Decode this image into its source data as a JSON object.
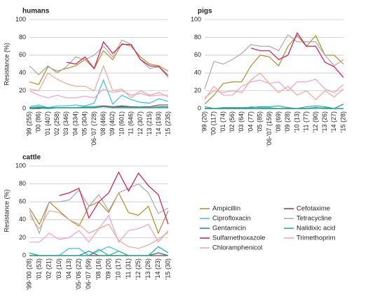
{
  "legend": [
    {
      "name": "Ampicillin",
      "color": "#b08d2a"
    },
    {
      "name": "Cefotaxime",
      "color": "#9b2c5a"
    },
    {
      "name": "Ciprofloxacin",
      "color": "#3cc0e0"
    },
    {
      "name": "Tetracycline",
      "color": "#a9a9a9"
    },
    {
      "name": "Gentamicin",
      "color": "#16966a"
    },
    {
      "name": "Nalidixic acid",
      "color": "#22a8a0"
    },
    {
      "name": "Sulfamethoxazole",
      "color": "#d4145a"
    },
    {
      "name": "Trimethoprim",
      "color": "#f0a0c8"
    },
    {
      "name": "Chloramphenicol",
      "color": "#e8a896"
    }
  ],
  "chart_data": [
    {
      "type": "line",
      "title": "humans",
      "ylabel": "Resistance (%)",
      "ylim": [
        0,
        100
      ],
      "yticks": [
        0,
        20,
        40,
        60,
        80,
        100
      ],
      "grid": true,
      "categories": [
        "'99 (255)",
        "'00 (86)",
        "'01 (407)",
        "'02 (258)",
        "'03 (346)",
        "'04 (334)",
        "'05 (304)",
        "'06-'07 (728)",
        "'08 (466)",
        "'09 (402)",
        "'10 (601)",
        "'11 (646)",
        "'12 (307)",
        "'13 (215)",
        "'14 (193)",
        "'15 (235)"
      ],
      "series": [
        {
          "values": [
            30,
            27,
            47,
            42,
            45,
            48,
            55,
            45,
            65,
            55,
            73,
            70,
            58,
            50,
            48,
            42
          ]
        },
        {
          "values": [
            0,
            0,
            1,
            1,
            1,
            1,
            2,
            2,
            3,
            2,
            3,
            2,
            2,
            2,
            4,
            4
          ]
        },
        {
          "values": [
            2,
            4,
            1,
            3,
            3,
            4,
            3,
            6,
            32,
            5,
            15,
            10,
            7,
            6,
            11,
            8
          ]
        },
        {
          "values": [
            48,
            38,
            48,
            40,
            47,
            58,
            55,
            60,
            70,
            58,
            77,
            72,
            55,
            45,
            47,
            35
          ]
        },
        {
          "values": [
            0,
            1,
            0,
            1,
            1,
            1,
            1,
            1,
            2,
            1,
            2,
            1,
            1,
            1,
            2,
            2
          ]
        },
        {
          "values": [
            1,
            2,
            1,
            1,
            1,
            1,
            2,
            2,
            2,
            1,
            1,
            1,
            2,
            1,
            1,
            1
          ]
        },
        {
          "values": [
            null,
            null,
            null,
            null,
            52,
            50,
            58,
            45,
            75,
            62,
            72,
            72,
            55,
            48,
            47,
            37
          ]
        },
        {
          "values": [
            20,
            15,
            12,
            15,
            12,
            12,
            14,
            12,
            22,
            18,
            20,
            15,
            17,
            14,
            15,
            15
          ]
        },
        {
          "values": [
            22,
            20,
            40,
            33,
            28,
            25,
            25,
            20,
            48,
            20,
            22,
            12,
            20,
            15,
            18,
            13
          ]
        }
      ]
    },
    {
      "type": "line",
      "title": "pigs",
      "ylim": [
        0,
        100
      ],
      "yticks": [
        0,
        20,
        40,
        60,
        80,
        100
      ],
      "grid": true,
      "categories": [
        "'99 (20)",
        "'00 (117)",
        "'01 (74)",
        "'02 (56)",
        "'03 (64)",
        "'04 (77)",
        "'05 (85)",
        "'06-'07 (159)",
        "'08 (69)",
        "'09 (28)",
        "'10 (13)",
        "'11 (77)",
        "'12 (90)",
        "'13 (26)",
        "'14 (27)",
        "'15 (28)"
      ],
      "series": [
        {
          "values": [
            5,
            15,
            28,
            30,
            30,
            48,
            60,
            58,
            48,
            70,
            82,
            70,
            82,
            60,
            60,
            50
          ]
        },
        {
          "values": [
            0,
            0,
            0,
            0,
            0,
            0,
            0,
            0,
            0,
            0,
            0,
            0,
            1,
            0,
            0,
            0
          ]
        },
        {
          "values": [
            0,
            0,
            0,
            1,
            0,
            2,
            1,
            1,
            0,
            0,
            0,
            0,
            0,
            1,
            0,
            0
          ]
        },
        {
          "values": [
            22,
            53,
            50,
            55,
            62,
            72,
            70,
            70,
            65,
            83,
            75,
            75,
            75,
            60,
            48,
            55
          ]
        },
        {
          "values": [
            0,
            0,
            0,
            0,
            0,
            0,
            0,
            0,
            0,
            0,
            0,
            0,
            1,
            0,
            0,
            5
          ]
        },
        {
          "values": [
            2,
            0,
            1,
            1,
            1,
            1,
            2,
            2,
            3,
            1,
            0,
            2,
            3,
            2,
            0,
            0
          ]
        },
        {
          "values": [
            null,
            null,
            null,
            null,
            null,
            68,
            65,
            65,
            55,
            60,
            85,
            70,
            70,
            52,
            47,
            35
          ]
        },
        {
          "values": [
            10,
            25,
            15,
            15,
            25,
            30,
            32,
            28,
            30,
            20,
            30,
            30,
            33,
            22,
            18,
            27
          ]
        },
        {
          "values": [
            12,
            20,
            18,
            20,
            18,
            32,
            40,
            28,
            18,
            25,
            15,
            20,
            10,
            20,
            13,
            22
          ]
        }
      ]
    },
    {
      "type": "line",
      "title": "cattle",
      "ylabel": "Resistance (%)",
      "ylim": [
        0,
        100
      ],
      "yticks": [
        0,
        20,
        40,
        60,
        80,
        100
      ],
      "grid": true,
      "categories": [
        "'99-'00 (28)",
        "'01 (53)",
        "'02 (21)",
        "'03 (10)",
        "'04 (13)",
        "'05-'06 (22)",
        "'06-'07 (59)",
        "'08 (16)",
        "'09 (20)",
        "'10 (17)",
        "'11 (31)",
        "'12 (25)",
        "'13 (26)",
        "'14 (23)",
        "'15 (30)"
      ],
      "series": [
        {
          "values": [
            53,
            35,
            60,
            50,
            40,
            33,
            55,
            60,
            48,
            70,
            48,
            45,
            55,
            25,
            50
          ]
        },
        {
          "values": [
            0,
            0,
            0,
            0,
            0,
            0,
            0,
            0,
            0,
            0,
            0,
            0,
            0,
            0,
            0
          ]
        },
        {
          "values": [
            3,
            0,
            0,
            0,
            8,
            8,
            0,
            5,
            10,
            5,
            0,
            0,
            0,
            3,
            0
          ]
        },
        {
          "values": [
            50,
            25,
            60,
            60,
            62,
            73,
            55,
            68,
            50,
            70,
            75,
            80,
            70,
            47,
            53
          ]
        },
        {
          "values": [
            0,
            0,
            0,
            0,
            0,
            0,
            5,
            0,
            0,
            0,
            0,
            0,
            0,
            3,
            0
          ]
        },
        {
          "values": [
            3,
            0,
            0,
            0,
            0,
            0,
            0,
            7,
            0,
            5,
            0,
            0,
            0,
            10,
            3
          ]
        },
        {
          "values": [
            null,
            null,
            null,
            67,
            70,
            75,
            42,
            60,
            70,
            93,
            72,
            92,
            78,
            68,
            35
          ]
        },
        {
          "values": [
            15,
            15,
            25,
            18,
            20,
            28,
            15,
            30,
            45,
            15,
            28,
            30,
            35,
            15,
            28
          ]
        },
        {
          "values": [
            45,
            30,
            50,
            48,
            40,
            35,
            25,
            30,
            35,
            17,
            10,
            8,
            12,
            18,
            26
          ]
        }
      ]
    }
  ]
}
